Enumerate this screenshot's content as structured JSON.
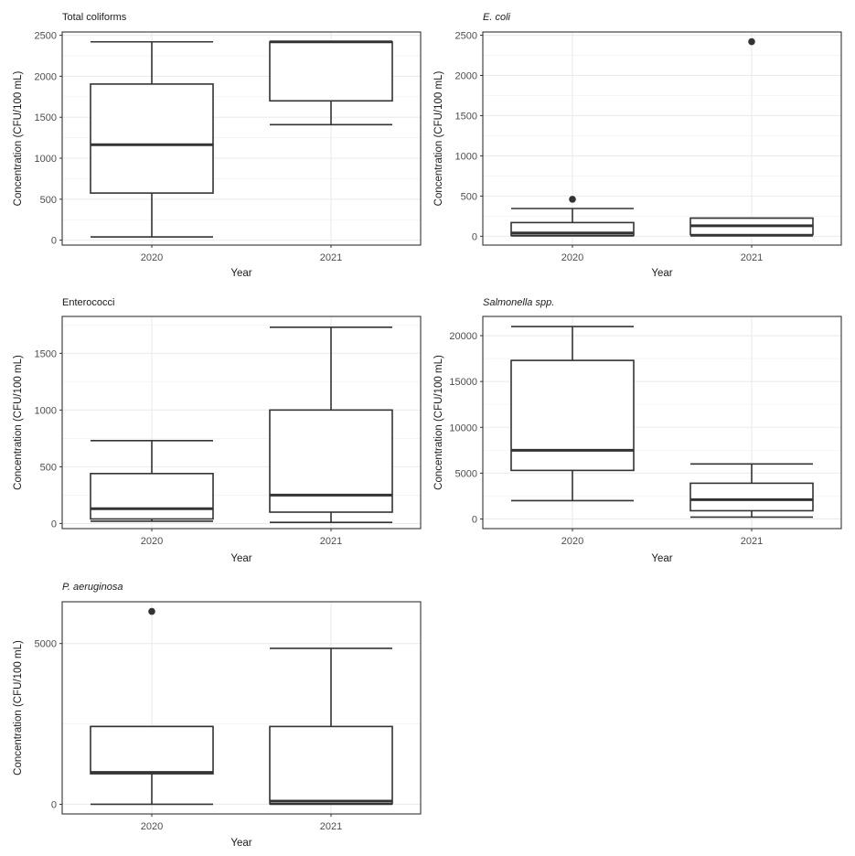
{
  "chart_data": [
    {
      "type": "box",
      "title": "Total coliforms",
      "title_italic": false,
      "xlabel": "Year",
      "ylabel": "Concentration (CFU/100 mL)",
      "categories": [
        "2020",
        "2021"
      ],
      "ylim": [
        -60,
        2540
      ],
      "yticks": [
        0,
        500,
        1000,
        1500,
        2000,
        2500
      ],
      "boxes": [
        {
          "min": 40,
          "q1": 575,
          "median": 1165,
          "q3": 1905,
          "max": 2420,
          "outliers": []
        },
        {
          "min": 1410,
          "q1": 1700,
          "median": 2420,
          "q3": 2420,
          "max": 2420,
          "outliers": []
        }
      ]
    },
    {
      "type": "box",
      "title": "E. coli",
      "title_italic": true,
      "xlabel": "Year",
      "ylabel": "Concentration (CFU/100 mL)",
      "categories": [
        "2020",
        "2021"
      ],
      "ylim": [
        -110,
        2540
      ],
      "yticks": [
        0,
        500,
        1000,
        1500,
        2000,
        2500
      ],
      "boxes": [
        {
          "min": 5,
          "q1": 10,
          "median": 40,
          "q3": 170,
          "max": 345,
          "outliers": [
            460
          ]
        },
        {
          "min": 5,
          "q1": 20,
          "median": 130,
          "q3": 225,
          "max": 225,
          "outliers": [
            2420
          ]
        }
      ]
    },
    {
      "type": "box",
      "title": "Enterococci",
      "title_italic": false,
      "xlabel": "Year",
      "ylabel": "Concentration (CFU/100 mL)",
      "categories": [
        "2020",
        "2021"
      ],
      "ylim": [
        -45,
        1825
      ],
      "yticks": [
        0,
        500,
        1000,
        1500
      ],
      "boxes": [
        {
          "min": 20,
          "q1": 40,
          "median": 130,
          "q3": 440,
          "max": 730,
          "outliers": []
        },
        {
          "min": 10,
          "q1": 100,
          "median": 250,
          "q3": 1000,
          "max": 1730,
          "outliers": []
        }
      ]
    },
    {
      "type": "box",
      "title": "Salmonella spp.",
      "title_italic": true,
      "xlabel": "Year",
      "ylabel": "Concentration (CFU/100 mL)",
      "categories": [
        "2020",
        "2021"
      ],
      "ylim": [
        -1050,
        22100
      ],
      "yticks": [
        0,
        5000,
        10000,
        15000,
        20000
      ],
      "boxes": [
        {
          "min": 2000,
          "q1": 5300,
          "median": 7500,
          "q3": 17300,
          "max": 21000,
          "outliers": []
        },
        {
          "min": 200,
          "q1": 900,
          "median": 2100,
          "q3": 3900,
          "max": 6000,
          "outliers": []
        }
      ]
    },
    {
      "type": "box",
      "title": "P. aeruginosa",
      "title_italic": true,
      "xlabel": "Year",
      "ylabel": "Concentration (CFU/100 mL)",
      "categories": [
        "2020",
        "2021"
      ],
      "ylim": [
        -300,
        6300
      ],
      "yticks": [
        0,
        5000
      ],
      "boxes": [
        {
          "min": 0,
          "q1": 950,
          "median": 990,
          "q3": 2420,
          "max": 2420,
          "outliers": [
            6000
          ]
        },
        {
          "min": 0,
          "q1": 20,
          "median": 100,
          "q3": 2420,
          "max": 4850,
          "outliers": []
        }
      ]
    }
  ]
}
